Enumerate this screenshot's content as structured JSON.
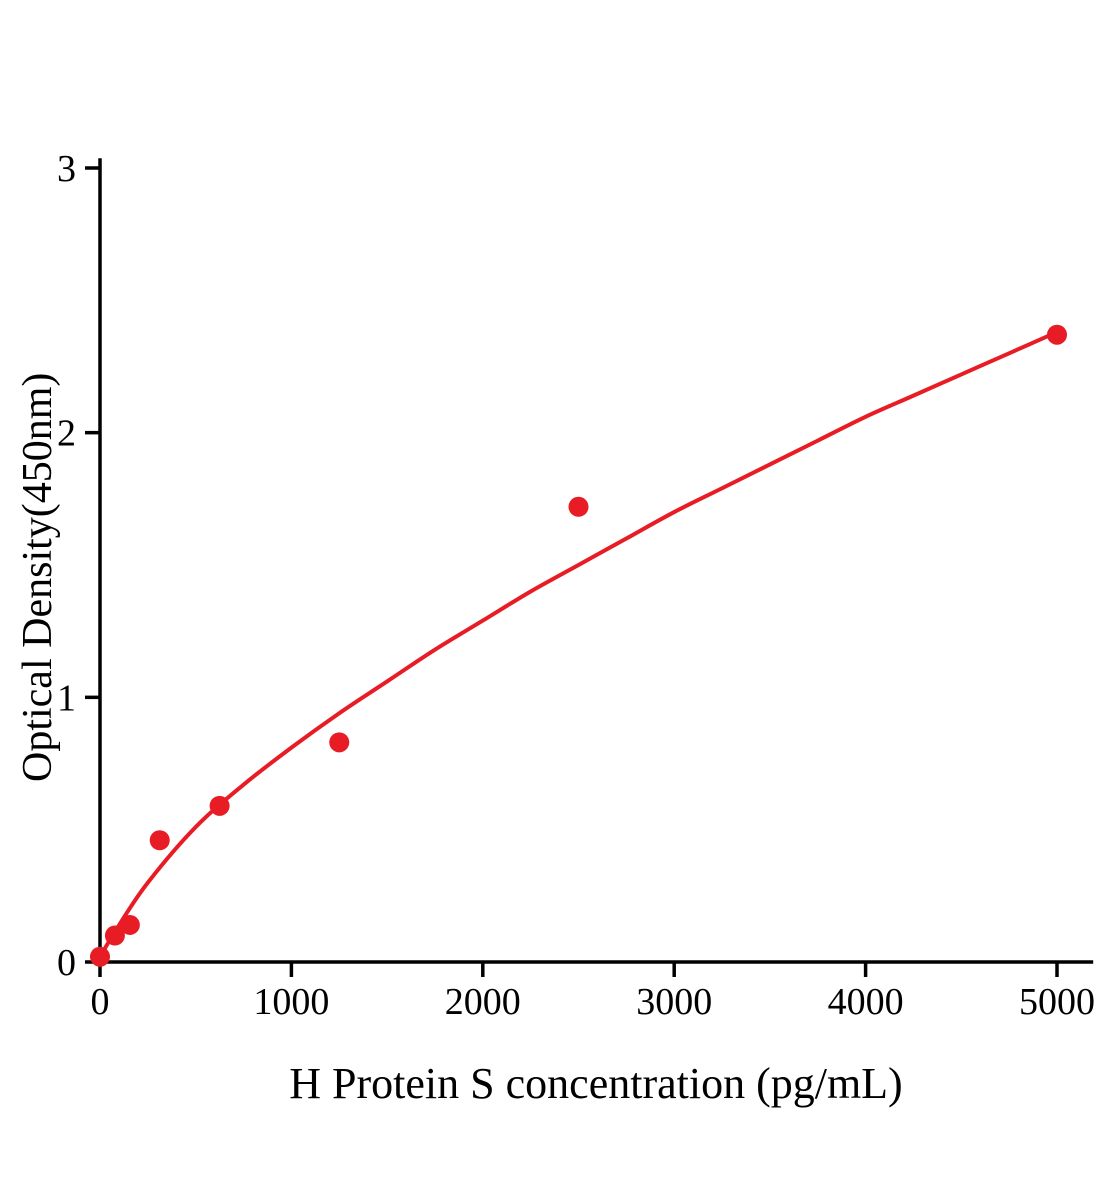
{
  "chart_data": {
    "type": "scatter",
    "title": "",
    "xlabel": "H Protein S concentration (pg/mL)",
    "ylabel": "Optical Density(450nm)",
    "xlim": [
      0,
      5180
    ],
    "ylim": [
      0,
      3.03
    ],
    "x_ticks": [
      0,
      1000,
      2000,
      3000,
      4000,
      5000
    ],
    "y_ticks": [
      0,
      1,
      2,
      3
    ],
    "grid": false,
    "legend": "none",
    "axis_color": "#000000",
    "point_color": "#e81c24",
    "curve_color": "#e81c24",
    "points": [
      [
        0,
        0.02
      ],
      [
        78,
        0.1
      ],
      [
        156,
        0.14
      ],
      [
        312,
        0.46
      ],
      [
        625,
        0.59
      ],
      [
        1250,
        0.83
      ],
      [
        2500,
        1.72
      ],
      [
        5000,
        2.37
      ]
    ],
    "fit_curve": [
      [
        0,
        0.02
      ],
      [
        100,
        0.14
      ],
      [
        250,
        0.3
      ],
      [
        500,
        0.51
      ],
      [
        750,
        0.67
      ],
      [
        1000,
        0.81
      ],
      [
        1250,
        0.94
      ],
      [
        1500,
        1.06
      ],
      [
        1750,
        1.18
      ],
      [
        2000,
        1.29
      ],
      [
        2250,
        1.4
      ],
      [
        2500,
        1.5
      ],
      [
        2750,
        1.6
      ],
      [
        3000,
        1.7
      ],
      [
        3250,
        1.79
      ],
      [
        3500,
        1.88
      ],
      [
        3750,
        1.97
      ],
      [
        4000,
        2.06
      ],
      [
        4250,
        2.14
      ],
      [
        4500,
        2.22
      ],
      [
        4750,
        2.3
      ],
      [
        5000,
        2.38
      ]
    ]
  }
}
